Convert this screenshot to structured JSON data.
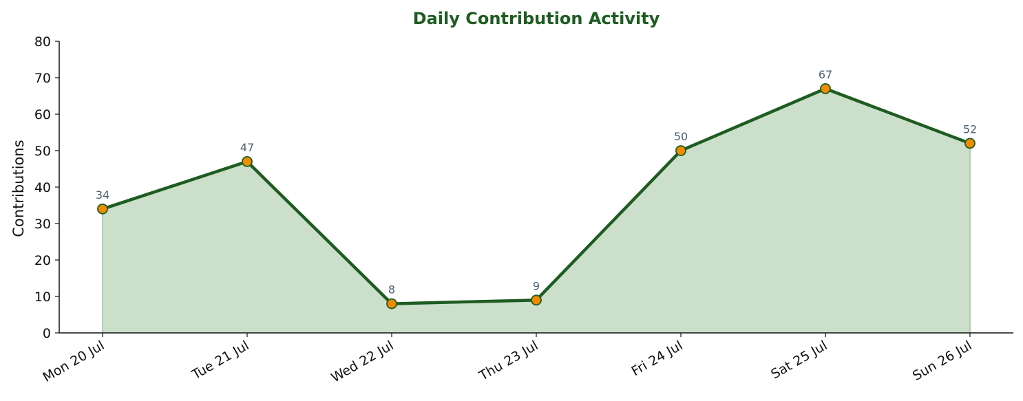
{
  "chart_data": {
    "type": "area",
    "title": "Daily Contribution Activity",
    "xlabel": "",
    "ylabel": "Contributions",
    "categories": [
      "Mon 20 Jul",
      "Tue 21 Jul",
      "Wed 22 Jul",
      "Thu 23 Jul",
      "Fri 24 Jul",
      "Sat 25 Jul",
      "Sun 26 Jul"
    ],
    "series": [
      {
        "values": [
          34,
          47,
          8,
          9,
          50,
          67,
          52
        ]
      }
    ],
    "ylim": [
      0,
      80
    ],
    "yticks": [
      0,
      10,
      20,
      30,
      40,
      50,
      60,
      70,
      80
    ],
    "grid": false,
    "data_labels": true,
    "colors": {
      "line": "#1e5c21",
      "fill": "#cbdfcb",
      "fill_edge": "#9cc49c",
      "marker": "#f08c00",
      "marker_edge": "#1e5c21",
      "title": "#1e5c21",
      "data_label": "#4a6070"
    }
  }
}
